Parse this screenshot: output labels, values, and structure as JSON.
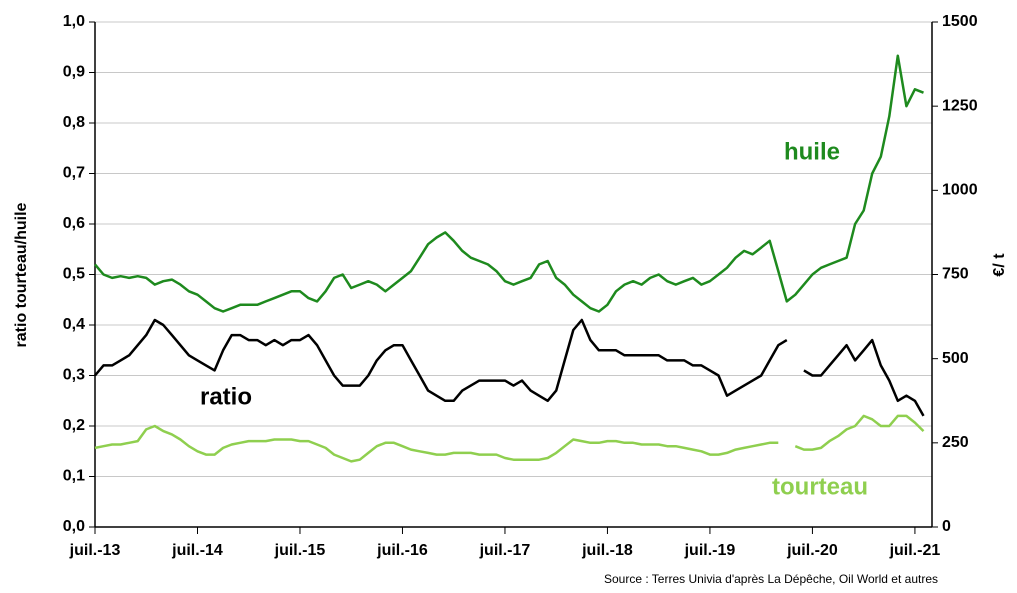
{
  "chart_data": {
    "type": "line",
    "y_label": "ratio tourteau/huile",
    "y2_label": "€/ t",
    "source": "Source : Terres Univia d'après La Dépêche, Oil World et autres",
    "xlim": [
      "2013-07",
      "2021-09"
    ],
    "xticks": [
      {
        "value": "2013-07",
        "label": "juil.-13"
      },
      {
        "value": "2014-07",
        "label": "juil.-14"
      },
      {
        "value": "2015-07",
        "label": "juil.-15"
      },
      {
        "value": "2016-07",
        "label": "juil.-16"
      },
      {
        "value": "2017-07",
        "label": "juil.-17"
      },
      {
        "value": "2018-07",
        "label": "juil.-18"
      },
      {
        "value": "2019-07",
        "label": "juil.-19"
      },
      {
        "value": "2020-07",
        "label": "juil.-20"
      },
      {
        "value": "2021-07",
        "label": "juil.-21"
      }
    ],
    "ylim": [
      0,
      1
    ],
    "yticks": [
      {
        "value": 0,
        "label": "0,0"
      },
      {
        "value": 0.1,
        "label": "0,1"
      },
      {
        "value": 0.2,
        "label": "0,2"
      },
      {
        "value": 0.3,
        "label": "0,3"
      },
      {
        "value": 0.4,
        "label": "0,4"
      },
      {
        "value": 0.5,
        "label": "0,5"
      },
      {
        "value": 0.6,
        "label": "0,6"
      },
      {
        "value": 0.7,
        "label": "0,7"
      },
      {
        "value": 0.8,
        "label": "0,8"
      },
      {
        "value": 0.9,
        "label": "0,9"
      },
      {
        "value": 1,
        "label": "1,0"
      }
    ],
    "y2lim": [
      0,
      1500
    ],
    "y2ticks": [
      0,
      250,
      500,
      750,
      1000,
      1250,
      1500
    ],
    "grid": true,
    "x": [
      "2013-07",
      "2013-08",
      "2013-09",
      "2013-10",
      "2013-11",
      "2013-12",
      "2014-01",
      "2014-02",
      "2014-03",
      "2014-04",
      "2014-05",
      "2014-06",
      "2014-07",
      "2014-08",
      "2014-09",
      "2014-10",
      "2014-11",
      "2014-12",
      "2015-01",
      "2015-02",
      "2015-03",
      "2015-04",
      "2015-05",
      "2015-06",
      "2015-07",
      "2015-08",
      "2015-09",
      "2015-10",
      "2015-11",
      "2015-12",
      "2016-01",
      "2016-02",
      "2016-03",
      "2016-04",
      "2016-05",
      "2016-06",
      "2016-07",
      "2016-08",
      "2016-09",
      "2016-10",
      "2016-11",
      "2016-12",
      "2017-01",
      "2017-02",
      "2017-03",
      "2017-04",
      "2017-05",
      "2017-06",
      "2017-07",
      "2017-08",
      "2017-09",
      "2017-10",
      "2017-11",
      "2017-12",
      "2018-01",
      "2018-02",
      "2018-03",
      "2018-04",
      "2018-05",
      "2018-06",
      "2018-07",
      "2018-08",
      "2018-09",
      "2018-10",
      "2018-11",
      "2018-12",
      "2019-01",
      "2019-02",
      "2019-03",
      "2019-04",
      "2019-05",
      "2019-06",
      "2019-07",
      "2019-08",
      "2019-09",
      "2019-10",
      "2019-11",
      "2019-12",
      "2020-01",
      "2020-02",
      "2020-03",
      "2020-04",
      "2020-05",
      "2020-06",
      "2020-07",
      "2020-08",
      "2020-09",
      "2020-10",
      "2020-11",
      "2020-12",
      "2021-01",
      "2021-02",
      "2021-03",
      "2021-04",
      "2021-05",
      "2021-06",
      "2021-07",
      "2021-08"
    ],
    "series": [
      {
        "name": "huile",
        "color": "#1e8a1e",
        "axis": "y2",
        "values": [
          780,
          750,
          740,
          745,
          740,
          745,
          740,
          720,
          730,
          735,
          720,
          700,
          690,
          670,
          650,
          640,
          650,
          660,
          660,
          660,
          670,
          680,
          690,
          700,
          700,
          680,
          670,
          700,
          740,
          750,
          710,
          720,
          730,
          720,
          700,
          720,
          740,
          760,
          800,
          840,
          860,
          875,
          850,
          820,
          800,
          790,
          780,
          760,
          730,
          720,
          730,
          740,
          780,
          790,
          740,
          720,
          690,
          670,
          650,
          640,
          660,
          700,
          720,
          730,
          720,
          740,
          750,
          730,
          720,
          730,
          740,
          720,
          730,
          750,
          770,
          800,
          820,
          810,
          830,
          850,
          760,
          670,
          690,
          720,
          750,
          770,
          780,
          790,
          800,
          900,
          940,
          1050,
          1100,
          1220,
          1400,
          1250,
          1300,
          1290
        ]
      },
      {
        "name": "ratio",
        "color": "#000000",
        "values": [
          0.3,
          0.32,
          0.32,
          0.33,
          0.34,
          0.36,
          0.38,
          0.41,
          0.4,
          0.38,
          0.36,
          0.34,
          0.33,
          0.32,
          0.31,
          0.35,
          0.38,
          0.38,
          0.37,
          0.37,
          0.36,
          0.37,
          0.36,
          0.37,
          0.37,
          0.38,
          0.36,
          0.33,
          0.3,
          0.28,
          0.28,
          0.28,
          0.3,
          0.33,
          0.35,
          0.36,
          0.36,
          0.33,
          0.3,
          0.27,
          0.26,
          0.25,
          0.25,
          0.27,
          0.28,
          0.29,
          0.29,
          0.29,
          0.29,
          0.28,
          0.29,
          0.27,
          0.26,
          0.25,
          0.27,
          0.33,
          0.39,
          0.41,
          0.37,
          0.35,
          0.35,
          0.35,
          0.34,
          0.34,
          0.34,
          0.34,
          0.34,
          0.33,
          0.33,
          0.33,
          0.32,
          0.32,
          0.31,
          0.3,
          0.26,
          0.27,
          0.28,
          0.29,
          0.3,
          0.33,
          0.36,
          0.37,
          null,
          0.31,
          0.3,
          0.3,
          0.32,
          0.34,
          0.36,
          0.33,
          0.35,
          0.37,
          0.32,
          0.29,
          0.25,
          0.26,
          0.25,
          0.22
        ]
      },
      {
        "name": "tourteau",
        "color": "#8fcf4f",
        "axis": "y2",
        "values": [
          235,
          240,
          245,
          245,
          250,
          255,
          290,
          300,
          285,
          275,
          260,
          240,
          225,
          215,
          215,
          235,
          245,
          250,
          255,
          255,
          255,
          260,
          260,
          260,
          255,
          255,
          245,
          235,
          215,
          205,
          195,
          200,
          220,
          240,
          250,
          250,
          240,
          230,
          225,
          220,
          215,
          215,
          220,
          220,
          220,
          215,
          215,
          215,
          205,
          200,
          200,
          200,
          200,
          205,
          220,
          240,
          260,
          255,
          250,
          250,
          255,
          255,
          250,
          250,
          245,
          245,
          245,
          240,
          240,
          235,
          230,
          225,
          215,
          215,
          220,
          230,
          235,
          240,
          245,
          250,
          250,
          null,
          240,
          230,
          230,
          235,
          255,
          270,
          290,
          300,
          330,
          320,
          300,
          300,
          330,
          330,
          310,
          285
        ]
      }
    ]
  }
}
